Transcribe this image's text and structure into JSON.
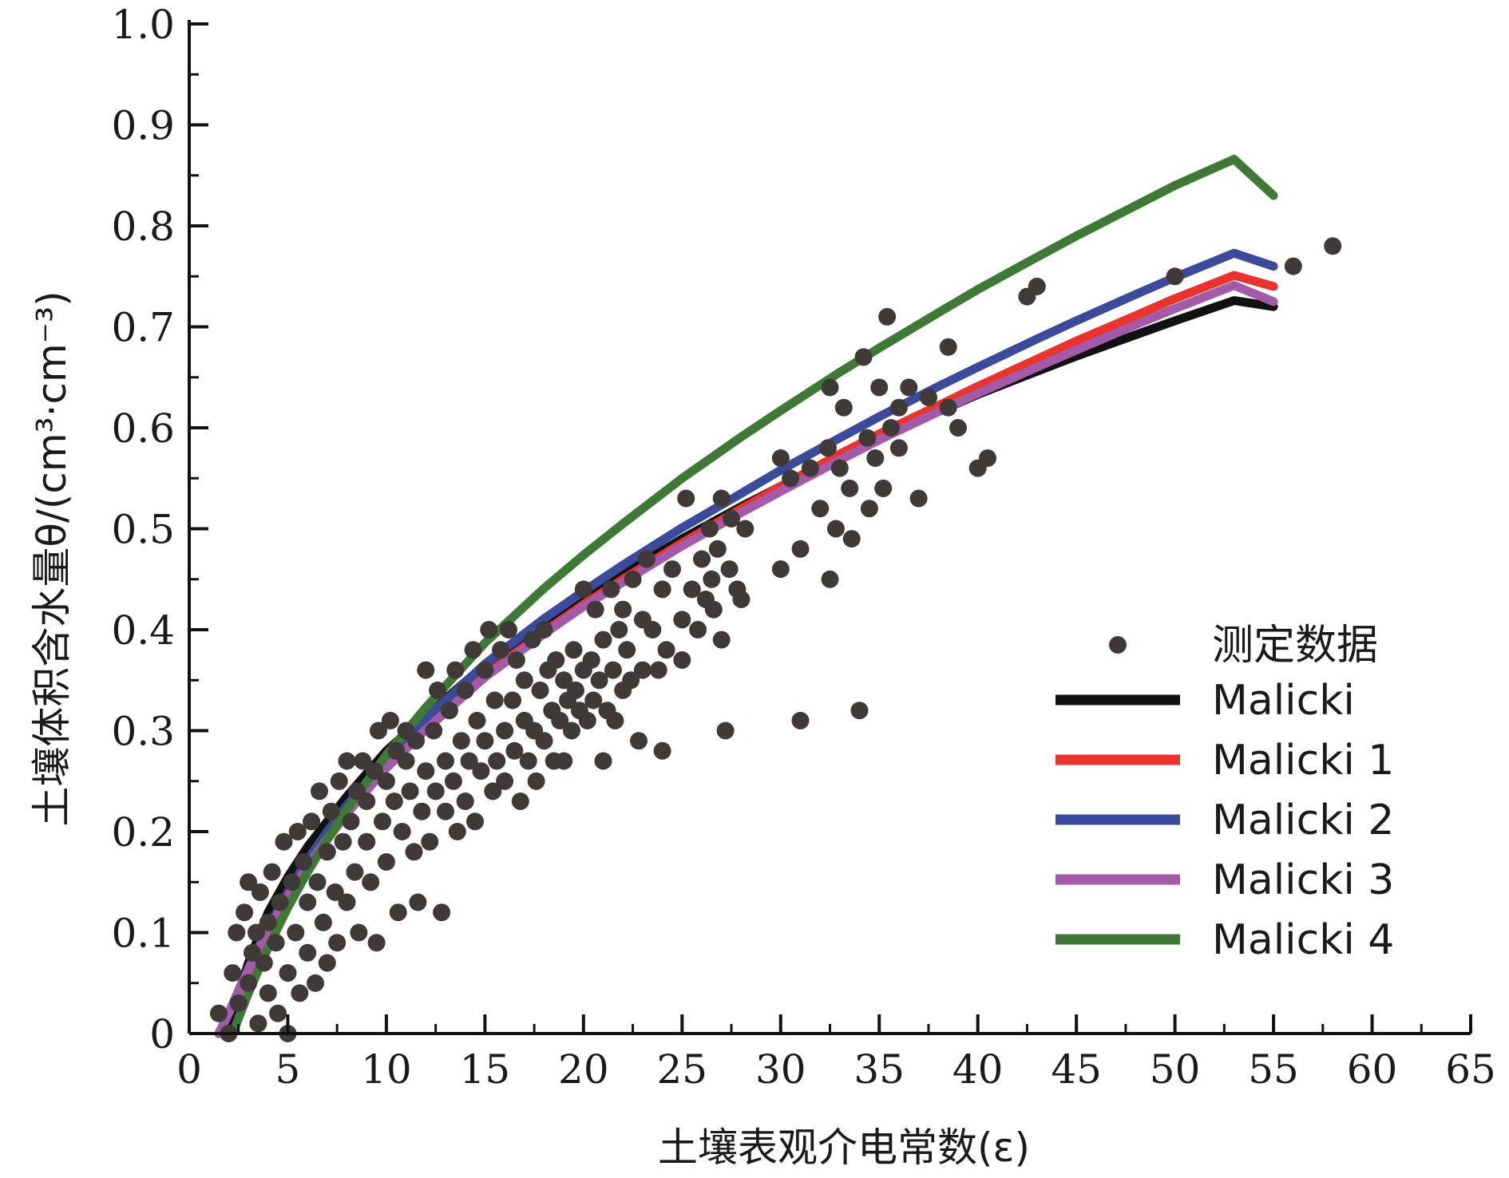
{
  "chart_data": {
    "type": "scatter",
    "xlabel": "土壤表观介电常数(ε)",
    "ylabel": "土壤体积含水量θ/(cm³·cm⁻³)",
    "xlim": [
      0,
      65
    ],
    "ylim": [
      0,
      1.0
    ],
    "x_ticks": [
      0,
      5,
      10,
      15,
      20,
      25,
      30,
      35,
      40,
      45,
      50,
      55,
      60,
      65
    ],
    "y_ticks": [
      "0",
      "0.1",
      "0.2",
      "0.3",
      "0.4",
      "0.5",
      "0.6",
      "0.7",
      "0.8",
      "0.9",
      "1.0"
    ],
    "grid": false,
    "legend_position": "bottom-right",
    "scatter": {
      "name": "测定数据",
      "color": "#3f3a38",
      "points": [
        [
          1.5,
          0.02
        ],
        [
          2.0,
          0.0
        ],
        [
          2.2,
          0.06
        ],
        [
          2.4,
          0.1
        ],
        [
          2.5,
          0.03
        ],
        [
          2.8,
          0.12
        ],
        [
          3.0,
          0.05
        ],
        [
          3.0,
          0.15
        ],
        [
          3.2,
          0.08
        ],
        [
          3.4,
          0.1
        ],
        [
          3.5,
          0.01
        ],
        [
          3.6,
          0.14
        ],
        [
          3.8,
          0.07
        ],
        [
          4.0,
          0.11
        ],
        [
          4.0,
          0.04
        ],
        [
          4.2,
          0.16
        ],
        [
          4.4,
          0.09
        ],
        [
          4.5,
          0.02
        ],
        [
          4.6,
          0.13
        ],
        [
          4.8,
          0.19
        ],
        [
          5.0,
          0.0
        ],
        [
          5.0,
          0.06
        ],
        [
          5.2,
          0.15
        ],
        [
          5.4,
          0.1
        ],
        [
          5.5,
          0.2
        ],
        [
          5.6,
          0.04
        ],
        [
          5.8,
          0.17
        ],
        [
          6.0,
          0.08
        ],
        [
          6.0,
          0.13
        ],
        [
          6.2,
          0.21
        ],
        [
          6.4,
          0.05
        ],
        [
          6.5,
          0.15
        ],
        [
          6.6,
          0.24
        ],
        [
          6.8,
          0.11
        ],
        [
          7.0,
          0.18
        ],
        [
          7.0,
          0.07
        ],
        [
          7.2,
          0.22
        ],
        [
          7.4,
          0.14
        ],
        [
          7.5,
          0.09
        ],
        [
          7.6,
          0.25
        ],
        [
          7.8,
          0.19
        ],
        [
          8.0,
          0.13
        ],
        [
          8.0,
          0.27
        ],
        [
          8.2,
          0.21
        ],
        [
          8.4,
          0.16
        ],
        [
          8.5,
          0.24
        ],
        [
          8.6,
          0.1
        ],
        [
          8.8,
          0.27
        ],
        [
          9.0,
          0.19
        ],
        [
          9.0,
          0.23
        ],
        [
          9.2,
          0.15
        ],
        [
          9.4,
          0.26
        ],
        [
          9.5,
          0.09
        ],
        [
          9.6,
          0.3
        ],
        [
          9.8,
          0.21
        ],
        [
          10.0,
          0.25
        ],
        [
          10.0,
          0.17
        ],
        [
          10.2,
          0.31
        ],
        [
          10.4,
          0.23
        ],
        [
          10.5,
          0.28
        ],
        [
          10.6,
          0.12
        ],
        [
          10.8,
          0.2
        ],
        [
          11.0,
          0.27
        ],
        [
          11.0,
          0.3
        ],
        [
          11.2,
          0.24
        ],
        [
          11.4,
          0.18
        ],
        [
          11.5,
          0.29
        ],
        [
          11.6,
          0.13
        ],
        [
          11.8,
          0.22
        ],
        [
          12.0,
          0.36
        ],
        [
          12.0,
          0.26
        ],
        [
          12.2,
          0.19
        ],
        [
          12.4,
          0.3
        ],
        [
          12.5,
          0.24
        ],
        [
          12.6,
          0.34
        ],
        [
          12.8,
          0.12
        ],
        [
          13.0,
          0.27
        ],
        [
          13.0,
          0.22
        ],
        [
          13.2,
          0.32
        ],
        [
          13.4,
          0.25
        ],
        [
          13.5,
          0.36
        ],
        [
          13.6,
          0.2
        ],
        [
          13.8,
          0.29
        ],
        [
          14.0,
          0.34
        ],
        [
          14.0,
          0.23
        ],
        [
          14.2,
          0.27
        ],
        [
          14.4,
          0.38
        ],
        [
          14.5,
          0.21
        ],
        [
          14.6,
          0.31
        ],
        [
          14.8,
          0.26
        ],
        [
          15.0,
          0.36
        ],
        [
          15.0,
          0.29
        ],
        [
          15.2,
          0.4
        ],
        [
          15.4,
          0.24
        ],
        [
          15.5,
          0.33
        ],
        [
          15.6,
          0.27
        ],
        [
          15.8,
          0.38
        ],
        [
          16.0,
          0.3
        ],
        [
          16.0,
          0.25
        ],
        [
          16.2,
          0.4
        ],
        [
          16.4,
          0.33
        ],
        [
          16.5,
          0.28
        ],
        [
          16.6,
          0.37
        ],
        [
          16.8,
          0.23
        ],
        [
          17.0,
          0.31
        ],
        [
          17.0,
          0.35
        ],
        [
          17.2,
          0.27
        ],
        [
          17.4,
          0.39
        ],
        [
          17.5,
          0.3
        ],
        [
          17.6,
          0.25
        ],
        [
          17.8,
          0.34
        ],
        [
          18.0,
          0.4
        ],
        [
          18.0,
          0.29
        ],
        [
          18.2,
          0.36
        ],
        [
          18.4,
          0.32
        ],
        [
          18.5,
          0.27
        ],
        [
          18.6,
          0.37
        ],
        [
          18.8,
          0.31
        ],
        [
          19.0,
          0.35
        ],
        [
          19.0,
          0.27
        ],
        [
          19.2,
          0.33
        ],
        [
          19.4,
          0.3
        ],
        [
          19.5,
          0.38
        ],
        [
          19.6,
          0.34
        ],
        [
          19.8,
          0.32
        ],
        [
          20.0,
          0.44
        ],
        [
          20.0,
          0.36
        ],
        [
          20.2,
          0.31
        ],
        [
          20.4,
          0.37
        ],
        [
          20.5,
          0.33
        ],
        [
          20.6,
          0.42
        ],
        [
          20.8,
          0.35
        ],
        [
          21.0,
          0.27
        ],
        [
          21.0,
          0.39
        ],
        [
          21.2,
          0.32
        ],
        [
          21.4,
          0.44
        ],
        [
          21.5,
          0.36
        ],
        [
          21.6,
          0.31
        ],
        [
          21.8,
          0.4
        ],
        [
          22.0,
          0.34
        ],
        [
          22.0,
          0.42
        ],
        [
          22.2,
          0.38
        ],
        [
          22.4,
          0.35
        ],
        [
          22.5,
          0.45
        ],
        [
          22.8,
          0.29
        ],
        [
          23.0,
          0.41
        ],
        [
          23.0,
          0.36
        ],
        [
          23.2,
          0.47
        ],
        [
          23.5,
          0.4
        ],
        [
          23.8,
          0.36
        ],
        [
          24.0,
          0.28
        ],
        [
          24.0,
          0.44
        ],
        [
          24.2,
          0.38
        ],
        [
          24.5,
          0.46
        ],
        [
          25.0,
          0.41
        ],
        [
          25.0,
          0.37
        ],
        [
          25.2,
          0.53
        ],
        [
          25.5,
          0.44
        ],
        [
          25.8,
          0.4
        ],
        [
          26.0,
          0.47
        ],
        [
          26.2,
          0.43
        ],
        [
          26.4,
          0.5
        ],
        [
          26.5,
          0.45
        ],
        [
          26.6,
          0.42
        ],
        [
          26.8,
          0.48
        ],
        [
          27.0,
          0.39
        ],
        [
          27.0,
          0.53
        ],
        [
          27.2,
          0.3
        ],
        [
          27.4,
          0.46
        ],
        [
          27.5,
          0.51
        ],
        [
          27.8,
          0.44
        ],
        [
          28.0,
          0.43
        ],
        [
          28.2,
          0.5
        ],
        [
          30.0,
          0.46
        ],
        [
          30.0,
          0.57
        ],
        [
          30.5,
          0.55
        ],
        [
          31.0,
          0.31
        ],
        [
          31.0,
          0.48
        ],
        [
          31.5,
          0.56
        ],
        [
          32.0,
          0.52
        ],
        [
          32.4,
          0.58
        ],
        [
          32.5,
          0.45
        ],
        [
          32.5,
          0.64
        ],
        [
          32.8,
          0.5
        ],
        [
          33.0,
          0.56
        ],
        [
          33.2,
          0.62
        ],
        [
          33.5,
          0.54
        ],
        [
          33.6,
          0.49
        ],
        [
          34.0,
          0.32
        ],
        [
          34.2,
          0.67
        ],
        [
          34.4,
          0.59
        ],
        [
          34.5,
          0.52
        ],
        [
          34.8,
          0.57
        ],
        [
          35.0,
          0.64
        ],
        [
          35.2,
          0.54
        ],
        [
          35.4,
          0.71
        ],
        [
          35.6,
          0.6
        ],
        [
          36.0,
          0.62
        ],
        [
          36.0,
          0.58
        ],
        [
          36.5,
          0.64
        ],
        [
          37.0,
          0.53
        ],
        [
          37.5,
          0.63
        ],
        [
          38.5,
          0.62
        ],
        [
          38.5,
          0.68
        ],
        [
          39.0,
          0.6
        ],
        [
          40.0,
          0.56
        ],
        [
          40.5,
          0.57
        ],
        [
          42.5,
          0.73
        ],
        [
          43.0,
          0.74
        ],
        [
          50.0,
          0.75
        ],
        [
          56.0,
          0.76
        ],
        [
          58.0,
          0.78
        ]
      ]
    },
    "series": [
      {
        "name": "Malicki",
        "color": "#111111",
        "x": [
          1.8,
          2,
          3,
          4,
          5,
          6,
          7,
          8,
          10,
          12,
          15,
          18,
          20,
          22,
          25,
          28,
          30,
          33,
          35,
          38,
          40,
          43,
          45,
          48,
          50,
          53,
          55
        ],
        "y": [
          0.0,
          0.01,
          0.07,
          0.12,
          0.155,
          0.185,
          0.21,
          0.235,
          0.28,
          0.315,
          0.365,
          0.405,
          0.43,
          0.455,
          0.49,
          0.522,
          0.542,
          0.572,
          0.59,
          0.616,
          0.633,
          0.656,
          0.671,
          0.692,
          0.706,
          0.726,
          0.72
        ]
      },
      {
        "name": "Malicki 1",
        "color": "#e8332f",
        "x": [
          1.5,
          2,
          3,
          4,
          5,
          6,
          7,
          8,
          10,
          12,
          15,
          18,
          20,
          22,
          25,
          28,
          30,
          33,
          35,
          38,
          40,
          43,
          45,
          48,
          50,
          53,
          55
        ],
        "y": [
          0.0,
          0.02,
          0.06,
          0.1,
          0.135,
          0.165,
          0.192,
          0.218,
          0.264,
          0.302,
          0.355,
          0.398,
          0.425,
          0.45,
          0.486,
          0.52,
          0.542,
          0.574,
          0.594,
          0.622,
          0.641,
          0.668,
          0.686,
          0.711,
          0.728,
          0.751,
          0.74
        ]
      },
      {
        "name": "Malicki 2",
        "color": "#3b4a9a",
        "x": [
          1.5,
          2,
          3,
          4,
          5,
          6,
          7,
          8,
          10,
          12,
          15,
          18,
          20,
          22,
          25,
          28,
          30,
          33,
          35,
          38,
          40,
          43,
          45,
          48,
          50,
          53,
          55
        ],
        "y": [
          0.0,
          0.02,
          0.065,
          0.105,
          0.14,
          0.172,
          0.2,
          0.226,
          0.272,
          0.312,
          0.366,
          0.411,
          0.438,
          0.464,
          0.501,
          0.535,
          0.558,
          0.59,
          0.611,
          0.641,
          0.66,
          0.688,
          0.706,
          0.732,
          0.749,
          0.773,
          0.76
        ]
      },
      {
        "name": "Malicki 3",
        "color": "#a35aa9",
        "x": [
          1.5,
          2,
          3,
          4,
          5,
          6,
          7,
          8,
          10,
          12,
          15,
          18,
          20,
          22,
          25,
          28,
          30,
          33,
          35,
          38,
          40,
          43,
          45,
          48,
          50,
          53,
          55
        ],
        "y": [
          0.0,
          0.02,
          0.063,
          0.102,
          0.136,
          0.166,
          0.193,
          0.218,
          0.263,
          0.301,
          0.353,
          0.396,
          0.423,
          0.447,
          0.483,
          0.516,
          0.537,
          0.568,
          0.588,
          0.616,
          0.634,
          0.66,
          0.677,
          0.702,
          0.718,
          0.741,
          0.725
        ]
      },
      {
        "name": "Malicki 4",
        "color": "#3e7a36",
        "x": [
          2.2,
          3,
          4,
          5,
          6,
          7,
          8,
          10,
          12,
          15,
          18,
          20,
          22,
          25,
          28,
          30,
          33,
          35,
          38,
          40,
          43,
          45,
          48,
          50,
          53,
          55
        ],
        "y": [
          0.0,
          0.04,
          0.085,
          0.125,
          0.16,
          0.192,
          0.222,
          0.276,
          0.323,
          0.387,
          0.441,
          0.474,
          0.505,
          0.55,
          0.591,
          0.617,
          0.655,
          0.679,
          0.714,
          0.737,
          0.769,
          0.79,
          0.82,
          0.84,
          0.866,
          0.83
        ]
      }
    ]
  }
}
